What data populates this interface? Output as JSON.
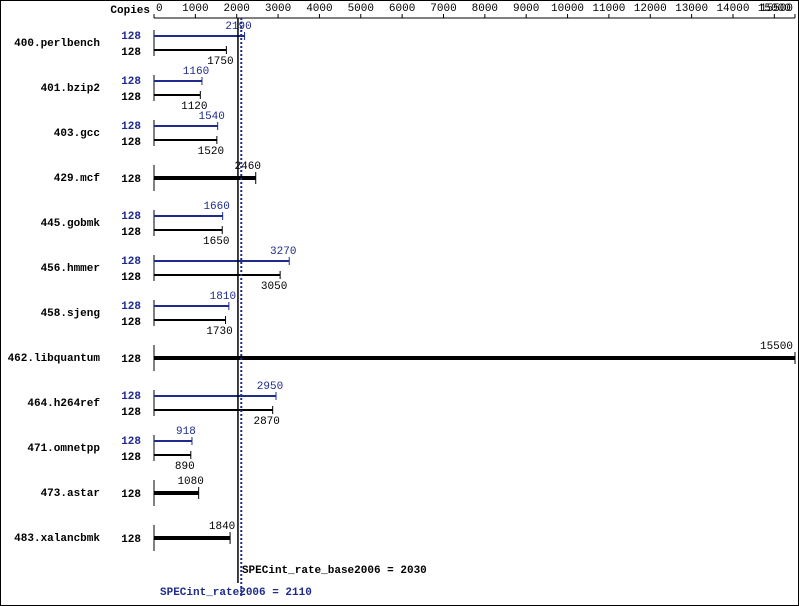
{
  "chart_data": {
    "type": "hbar",
    "copies_header": "Copies",
    "categories": [
      "400.perlbench",
      "401.bzip2",
      "403.gcc",
      "429.mcf",
      "445.gobmk",
      "456.hmmer",
      "458.sjeng",
      "462.libquantum",
      "464.h264ref",
      "471.omnetpp",
      "473.astar",
      "483.xalancbmk"
    ],
    "series": [
      {
        "color": "#1f2b8c",
        "copies": [
          128,
          128,
          128,
          null,
          128,
          128,
          128,
          null,
          128,
          128,
          null,
          null
        ],
        "values": [
          2190,
          1160,
          1540,
          null,
          1660,
          3270,
          1810,
          null,
          2950,
          918,
          null,
          null
        ]
      },
      {
        "color": "#000000",
        "copies": [
          128,
          128,
          128,
          128,
          128,
          128,
          128,
          128,
          128,
          128,
          128,
          128
        ],
        "values": [
          1750,
          1120,
          1520,
          2460,
          1650,
          3050,
          1730,
          15500,
          2870,
          890,
          1080,
          1840
        ]
      }
    ],
    "xlim": [
      0,
      15500
    ],
    "xticks": [
      0,
      1000,
      2000,
      3000,
      4000,
      5000,
      6000,
      7000,
      8000,
      9000,
      10000,
      11000,
      12000,
      13000,
      14000,
      15000,
      15500
    ],
    "reference_lines": [
      {
        "label": "SPECint_rate_base2006 = 2030",
        "value": 2030,
        "color": "#000000",
        "style": "solid"
      },
      {
        "label": "SPECint_rate2006 = 2110",
        "value": 2110,
        "color": "#1f2b8c",
        "style": "dotted"
      }
    ]
  }
}
